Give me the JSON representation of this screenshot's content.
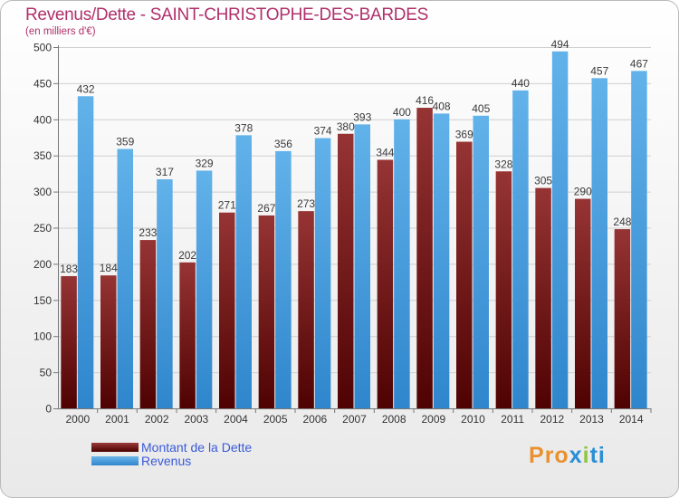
{
  "colors": {
    "debt": "#6e1414",
    "revenue": "#3d9be0",
    "title": "#b0306b",
    "legend_text": "#3a5ad8"
  },
  "logo": {
    "text": "Proxiti",
    "letter_colors": [
      "#e8912e",
      "#e8912e",
      "#e8912e",
      "#2b8fd6",
      "#8cc63e",
      "#2b8fd6",
      "#2b8fd6"
    ]
  },
  "chart_data": {
    "type": "bar",
    "title": "Revenus/Dette - SAINT-CHRISTOPHE-DES-BARDES",
    "subtitle": "(en milliers d'€)",
    "categories": [
      "2000",
      "2001",
      "2002",
      "2003",
      "2004",
      "2005",
      "2006",
      "2007",
      "2008",
      "2009",
      "2010",
      "2011",
      "2012",
      "2013",
      "2014"
    ],
    "series": [
      {
        "name": "Montant de la Dette",
        "color": "#6e1414",
        "values": [
          183,
          184,
          233,
          202,
          271,
          267,
          273,
          380,
          344,
          416,
          369,
          328,
          305,
          290,
          248
        ]
      },
      {
        "name": "Revenus",
        "color": "#3d9be0",
        "values": [
          432,
          359,
          317,
          329,
          378,
          356,
          374,
          393,
          400,
          408,
          405,
          440,
          494,
          457,
          467
        ]
      }
    ],
    "ylim": [
      0,
      500
    ],
    "yticks": [
      0,
      50,
      100,
      150,
      200,
      250,
      300,
      350,
      400,
      450,
      500
    ],
    "grid": true,
    "legend": "bottom-left"
  }
}
